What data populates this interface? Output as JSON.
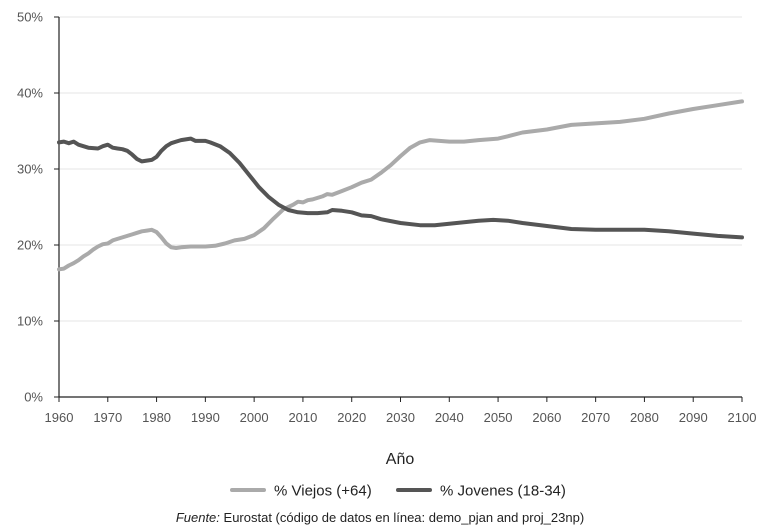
{
  "chart_data": {
    "type": "line",
    "xlabel": "Año",
    "ylabel": "",
    "xlim": [
      1960,
      2100
    ],
    "ylim": [
      0,
      50
    ],
    "x_ticks": [
      "1960",
      "1970",
      "1980",
      "1990",
      "2000",
      "2010",
      "2020",
      "2030",
      "2040",
      "2050",
      "2060",
      "2070",
      "2080",
      "2090",
      "2100"
    ],
    "y_ticks": [
      "0%",
      "10%",
      "20%",
      "30%",
      "40%",
      "50%"
    ],
    "grid": "horizontal",
    "legend_position": "bottom",
    "series": [
      {
        "name": "% Viejos (+64)",
        "color": "#aaaaaa",
        "points": [
          [
            1960,
            16.8
          ],
          [
            1961,
            16.9
          ],
          [
            1962,
            17.3
          ],
          [
            1963,
            17.6
          ],
          [
            1964,
            18.0
          ],
          [
            1965,
            18.5
          ],
          [
            1966,
            18.9
          ],
          [
            1967,
            19.4
          ],
          [
            1968,
            19.8
          ],
          [
            1969,
            20.1
          ],
          [
            1970,
            20.2
          ],
          [
            1971,
            20.6
          ],
          [
            1972,
            20.8
          ],
          [
            1973,
            21.0
          ],
          [
            1974,
            21.2
          ],
          [
            1975,
            21.4
          ],
          [
            1976,
            21.6
          ],
          [
            1977,
            21.8
          ],
          [
            1978,
            21.9
          ],
          [
            1979,
            22.0
          ],
          [
            1980,
            21.7
          ],
          [
            1981,
            21.0
          ],
          [
            1982,
            20.2
          ],
          [
            1983,
            19.7
          ],
          [
            1984,
            19.6
          ],
          [
            1985,
            19.7
          ],
          [
            1987,
            19.8
          ],
          [
            1990,
            19.8
          ],
          [
            1992,
            19.9
          ],
          [
            1994,
            20.2
          ],
          [
            1996,
            20.6
          ],
          [
            1998,
            20.8
          ],
          [
            2000,
            21.3
          ],
          [
            2002,
            22.2
          ],
          [
            2004,
            23.5
          ],
          [
            2006,
            24.7
          ],
          [
            2008,
            25.3
          ],
          [
            2009,
            25.7
          ],
          [
            2010,
            25.6
          ],
          [
            2011,
            25.9
          ],
          [
            2012,
            26.0
          ],
          [
            2014,
            26.4
          ],
          [
            2015,
            26.7
          ],
          [
            2016,
            26.6
          ],
          [
            2018,
            27.1
          ],
          [
            2020,
            27.6
          ],
          [
            2022,
            28.2
          ],
          [
            2024,
            28.6
          ],
          [
            2026,
            29.5
          ],
          [
            2028,
            30.5
          ],
          [
            2030,
            31.7
          ],
          [
            2032,
            32.8
          ],
          [
            2034,
            33.5
          ],
          [
            2036,
            33.8
          ],
          [
            2038,
            33.7
          ],
          [
            2040,
            33.6
          ],
          [
            2043,
            33.6
          ],
          [
            2046,
            33.8
          ],
          [
            2050,
            34.0
          ],
          [
            2052,
            34.3
          ],
          [
            2055,
            34.8
          ],
          [
            2060,
            35.2
          ],
          [
            2065,
            35.8
          ],
          [
            2070,
            36.0
          ],
          [
            2075,
            36.2
          ],
          [
            2080,
            36.6
          ],
          [
            2085,
            37.3
          ],
          [
            2090,
            37.9
          ],
          [
            2095,
            38.4
          ],
          [
            2100,
            38.9
          ]
        ]
      },
      {
        "name": "% Jovenes (18-34)",
        "color": "#555555",
        "points": [
          [
            1960,
            33.5
          ],
          [
            1961,
            33.6
          ],
          [
            1962,
            33.4
          ],
          [
            1963,
            33.6
          ],
          [
            1964,
            33.2
          ],
          [
            1965,
            33.0
          ],
          [
            1966,
            32.8
          ],
          [
            1968,
            32.7
          ],
          [
            1969,
            33.0
          ],
          [
            1970,
            33.2
          ],
          [
            1971,
            32.8
          ],
          [
            1972,
            32.7
          ],
          [
            1973,
            32.6
          ],
          [
            1974,
            32.4
          ],
          [
            1975,
            31.9
          ],
          [
            1976,
            31.3
          ],
          [
            1977,
            31.0
          ],
          [
            1978,
            31.1
          ],
          [
            1979,
            31.2
          ],
          [
            1980,
            31.6
          ],
          [
            1981,
            32.4
          ],
          [
            1982,
            33.0
          ],
          [
            1983,
            33.4
          ],
          [
            1984,
            33.6
          ],
          [
            1985,
            33.8
          ],
          [
            1986,
            33.9
          ],
          [
            1987,
            34.0
          ],
          [
            1988,
            33.7
          ],
          [
            1989,
            33.7
          ],
          [
            1990,
            33.7
          ],
          [
            1991,
            33.5
          ],
          [
            1993,
            33.0
          ],
          [
            1995,
            32.1
          ],
          [
            1997,
            30.8
          ],
          [
            1999,
            29.2
          ],
          [
            2001,
            27.6
          ],
          [
            2003,
            26.3
          ],
          [
            2005,
            25.3
          ],
          [
            2007,
            24.6
          ],
          [
            2009,
            24.3
          ],
          [
            2011,
            24.2
          ],
          [
            2013,
            24.2
          ],
          [
            2015,
            24.3
          ],
          [
            2016,
            24.6
          ],
          [
            2018,
            24.5
          ],
          [
            2020,
            24.3
          ],
          [
            2022,
            23.9
          ],
          [
            2024,
            23.8
          ],
          [
            2026,
            23.4
          ],
          [
            2030,
            22.9
          ],
          [
            2034,
            22.6
          ],
          [
            2037,
            22.6
          ],
          [
            2040,
            22.8
          ],
          [
            2043,
            23.0
          ],
          [
            2046,
            23.2
          ],
          [
            2049,
            23.3
          ],
          [
            2052,
            23.2
          ],
          [
            2055,
            22.9
          ],
          [
            2060,
            22.5
          ],
          [
            2065,
            22.1
          ],
          [
            2070,
            22.0
          ],
          [
            2075,
            22.0
          ],
          [
            2080,
            22.0
          ],
          [
            2085,
            21.8
          ],
          [
            2090,
            21.5
          ],
          [
            2095,
            21.2
          ],
          [
            2100,
            21.0
          ]
        ]
      }
    ]
  },
  "source": {
    "label": "Fuente:",
    "text": " Eurostat (código de datos en línea: demo_pjan and proj_23np)"
  }
}
